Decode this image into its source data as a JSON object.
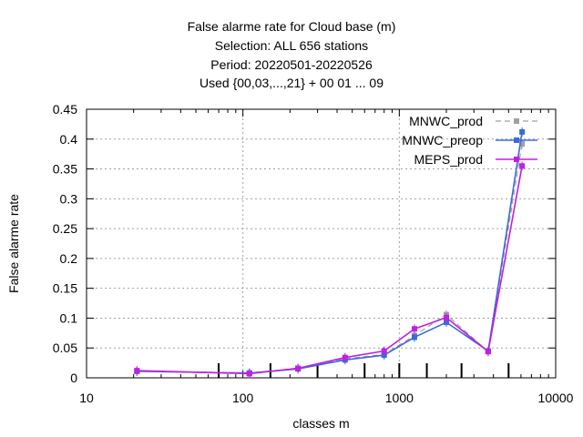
{
  "chart_data": {
    "type": "line",
    "title_lines": [
      "False alarme rate  for Cloud base (m)",
      "Selection: ALL    656 stations",
      "Period: 20220501-20220526",
      "Used {00,03,...,21} + 00 01 ... 09"
    ],
    "xlabel": "classes m",
    "ylabel": "False alarme rate",
    "xscale": "log",
    "xlim": [
      10,
      10000
    ],
    "ylim": [
      0,
      0.45
    ],
    "x_ticks": [
      "10",
      "100",
      "1000",
      "10000"
    ],
    "y_ticks": [
      "0",
      "0.05",
      "0.1",
      "0.15",
      "0.2",
      "0.25",
      "0.3",
      "0.35",
      "0.4",
      "0.45"
    ],
    "grid": true,
    "legend_position": "top-right",
    "marker_x": [
      70,
      150,
      300,
      600,
      1000,
      1500,
      2500,
      5000
    ],
    "series": [
      {
        "name": "MNWC_prod",
        "color": "#a0a0a4",
        "dash": "dashed",
        "x": [
          21,
          110,
          225,
          450,
          800,
          1250,
          2000,
          3700,
          6100
        ],
        "y": [
          0.011,
          0.008,
          0.016,
          0.032,
          0.039,
          0.071,
          0.106,
          0.044,
          0.392
        ]
      },
      {
        "name": "MNWC_preop",
        "color": "#3b6bd6",
        "dash": "solid",
        "x": [
          21,
          110,
          225,
          450,
          800,
          1250,
          2000,
          3700,
          6100
        ],
        "y": [
          0.011,
          0.008,
          0.015,
          0.03,
          0.038,
          0.068,
          0.093,
          0.045,
          0.412
        ]
      },
      {
        "name": "MEPS_prod",
        "color": "#c020e0",
        "dash": "solid",
        "x": [
          21,
          110,
          225,
          450,
          800,
          1250,
          2000,
          3700,
          6100
        ],
        "y": [
          0.012,
          0.007,
          0.016,
          0.034,
          0.045,
          0.082,
          0.101,
          0.044,
          0.355
        ]
      }
    ]
  }
}
